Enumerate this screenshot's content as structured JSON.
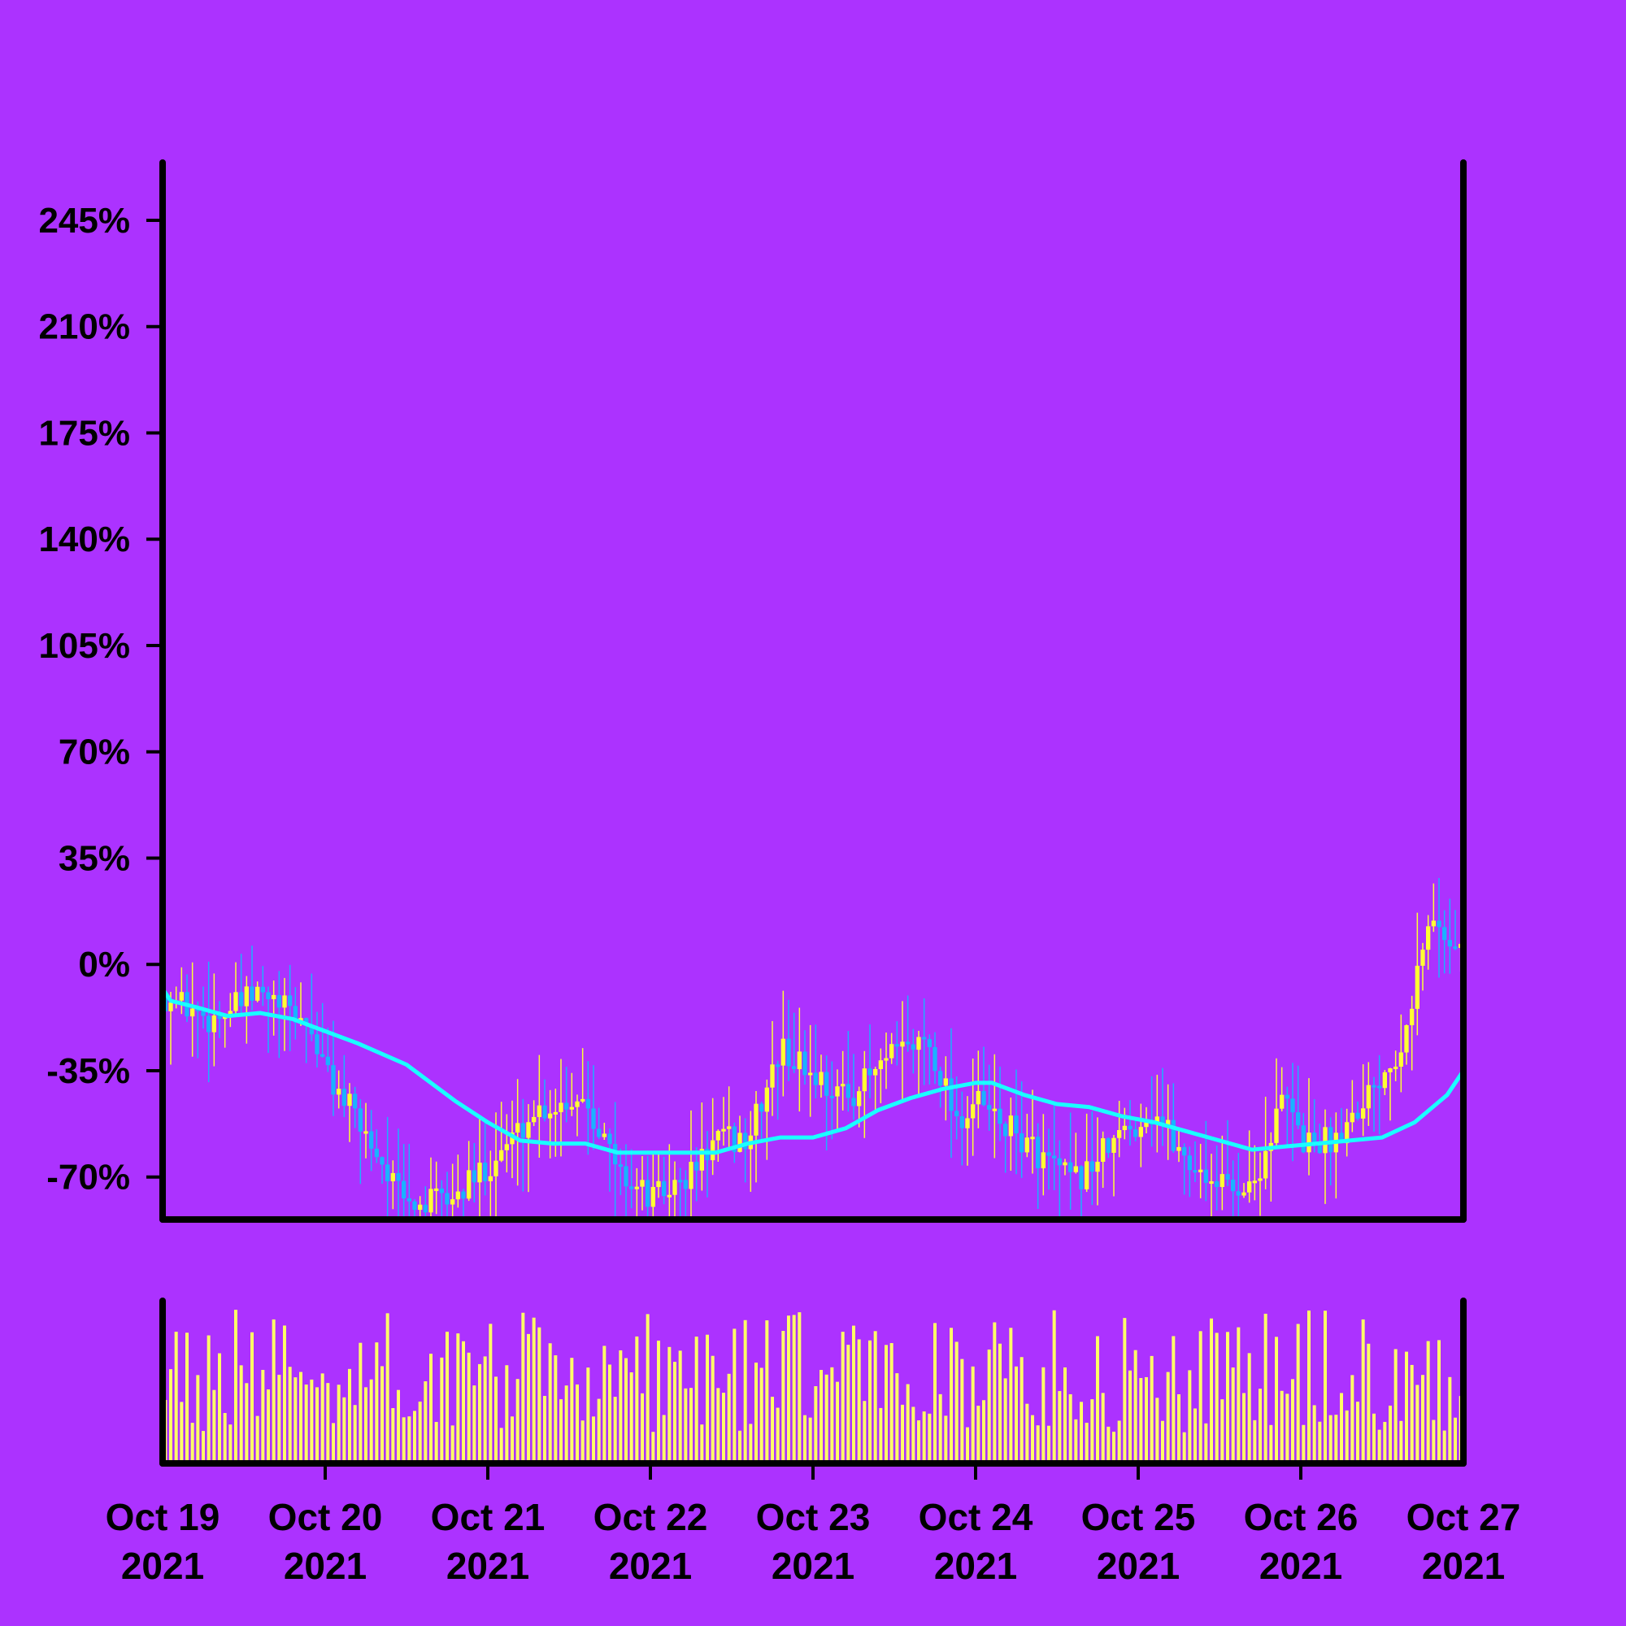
{
  "colors": {
    "background": "#ac32ff",
    "axis": "#000000",
    "candle_up": "#ffff33",
    "candle_down": "#1ab2ff",
    "moving_average": "#1affff",
    "volume": "#ffff66"
  },
  "chart_data": {
    "type": "candlestick",
    "y_axis": {
      "ticks": [
        "245%",
        "210%",
        "175%",
        "140%",
        "105%",
        "70%",
        "35%",
        "0%",
        "-35%",
        "-70%"
      ],
      "tick_values": [
        245,
        210,
        175,
        140,
        105,
        70,
        35,
        0,
        -35,
        -70
      ],
      "range": [
        -84,
        264
      ],
      "unit": "percent"
    },
    "x_axis": {
      "ticks": [
        [
          "Oct 19",
          "2021"
        ],
        [
          "Oct 20",
          "2021"
        ],
        [
          "Oct 21",
          "2021"
        ],
        [
          "Oct 22",
          "2021"
        ],
        [
          "Oct 23",
          "2021"
        ],
        [
          "Oct 24",
          "2021"
        ],
        [
          "Oct 25",
          "2021"
        ],
        [
          "Oct 26",
          "2021"
        ],
        [
          "Oct 27",
          "2021"
        ]
      ],
      "range": [
        "2021-10-19",
        "2021-10-27"
      ]
    },
    "moving_average": {
      "x_days": [
        0,
        0.05,
        0.2,
        0.4,
        0.6,
        0.8,
        1.0,
        1.2,
        1.5,
        1.8,
        2.0,
        2.2,
        2.4,
        2.6,
        2.8,
        3.0,
        3.2,
        3.4,
        3.6,
        3.8,
        4.0,
        4.2,
        4.4,
        4.6,
        4.8,
        5.0,
        5.1,
        5.3,
        5.5,
        5.7,
        5.9,
        6.1,
        6.3,
        6.5,
        6.7,
        6.9,
        7.1,
        7.3,
        7.5,
        7.7,
        7.9,
        8.0
      ],
      "y": [
        -8,
        -12,
        -14,
        -17,
        -16,
        -18,
        -22,
        -26,
        -33,
        -45,
        -52,
        -58,
        -59,
        -59,
        -62,
        -62,
        -62,
        -62,
        -59,
        -57,
        -57,
        -54,
        -48,
        -44,
        -41,
        -39,
        -39,
        -43,
        -46,
        -47,
        -50,
        -52,
        -55,
        -58,
        -61,
        -60,
        -59,
        -58,
        -57,
        -52,
        -43,
        -35
      ]
    },
    "candles": {
      "keypoints_days": [
        0,
        0.3,
        0.6,
        0.9,
        1.0,
        1.3,
        1.5,
        1.8,
        2.0,
        2.3,
        2.6,
        2.8,
        3.0,
        3.2,
        3.4,
        3.6,
        3.8,
        4.0,
        4.2,
        4.5,
        4.7,
        4.9,
        5.0,
        5.2,
        5.4,
        5.6,
        5.9,
        6.1,
        6.3,
        6.5,
        6.7,
        6.9,
        7.0,
        7.2,
        7.3,
        7.6,
        7.8,
        8.0
      ],
      "keypoints_close": [
        -10,
        -18,
        -10,
        -20,
        -35,
        -60,
        -80,
        -77,
        -66,
        -48,
        -43,
        -68,
        -77,
        -72,
        -58,
        -58,
        -28,
        -36,
        -44,
        -30,
        -24,
        -52,
        -45,
        -54,
        -63,
        -72,
        -56,
        -48,
        -65,
        -72,
        -74,
        -43,
        -58,
        -58,
        -50,
        -28,
        15,
        4
      ]
    },
    "volume": {
      "note": "per-candle volume bars in lower pane, relative scale 0-1"
    }
  }
}
